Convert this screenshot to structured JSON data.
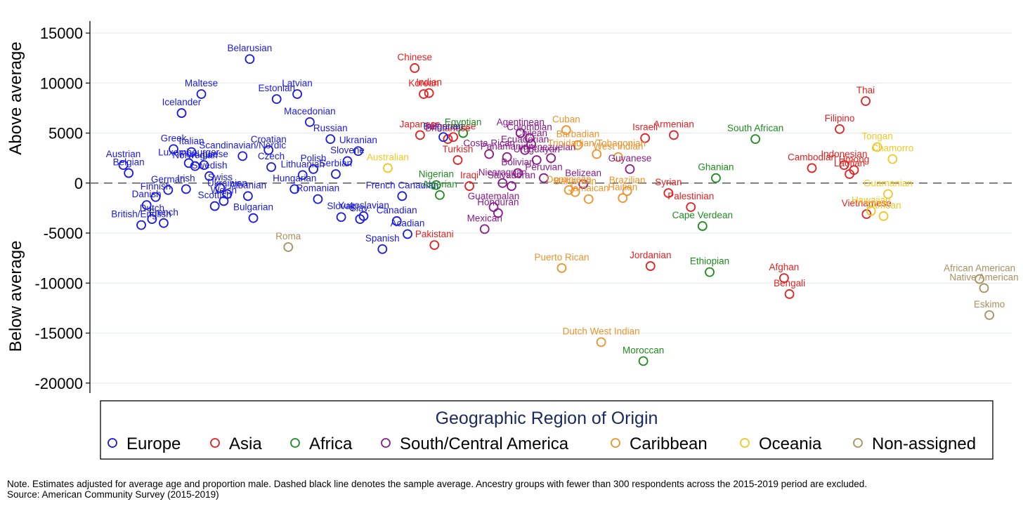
{
  "notes": {
    "line1": "Note. Estimates adjusted for average age and proportion male. Dashed black line denotes the sample average. Ancestry groups with fewer than 300 respondents across the 2015-2019 period are excluded.",
    "line2": "Source: American Community Survey (2015-2019)"
  },
  "chart_data": {
    "type": "scatter",
    "ylabel_top": "Above average",
    "ylabel_bottom": "Below average",
    "y_ticks": [
      15000,
      10000,
      5000,
      0,
      -5000,
      -10000,
      -15000,
      -20000
    ],
    "y_tick_labels": [
      "15000",
      "10000",
      "5000",
      "0",
      "-5000",
      "-10000",
      "-15000",
      "-20000"
    ],
    "ylim": [
      -21000,
      16200
    ],
    "xlim": [
      0,
      100
    ],
    "grid": true,
    "reference_line": 0,
    "legend": {
      "title": "Geographic Region of Origin",
      "position": "bottom",
      "entries": [
        "Europe",
        "Asia",
        "Africa",
        "South/Central America",
        "Caribbean",
        "Oceania",
        "Non-assigned"
      ]
    },
    "colors": {
      "Europe": "#1a1ae6",
      "Asia": "#e62020",
      "Africa": "#1e8c1e",
      "South/Central America": "#8b1a8b",
      "Caribbean": "#f0922a",
      "Oceania": "#f2c824",
      "Non-assigned": "#a89060",
      "grid": "#e6eef2",
      "reference": "#666666"
    },
    "points": [
      {
        "label": "Austrian",
        "region": "Europe",
        "x": 2.0,
        "y": 1800
      },
      {
        "label": "Belgian",
        "region": "Europe",
        "x": 2.6,
        "y": 1000
      },
      {
        "label": "Danish",
        "region": "Europe",
        "x": 4.6,
        "y": -2200
      },
      {
        "label": "British/English",
        "region": "Europe",
        "x": 4.0,
        "y": -4200
      },
      {
        "label": "Dutch",
        "region": "Europe",
        "x": 5.2,
        "y": -3600
      },
      {
        "label": "French",
        "region": "Europe",
        "x": 6.5,
        "y": -4000
      },
      {
        "label": "Finnish",
        "region": "Europe",
        "x": 5.6,
        "y": -1400
      },
      {
        "label": "German",
        "region": "Europe",
        "x": 7.0,
        "y": -700
      },
      {
        "label": "Greek",
        "region": "Europe",
        "x": 7.6,
        "y": 3400
      },
      {
        "label": "Irish",
        "region": "Europe",
        "x": 9.0,
        "y": -600
      },
      {
        "label": "Italian",
        "region": "Europe",
        "x": 9.6,
        "y": 3100
      },
      {
        "label": "Icelander",
        "region": "Europe",
        "x": 8.5,
        "y": 7000
      },
      {
        "label": "Luxembourger",
        "region": "Europe",
        "x": 9.3,
        "y": 2000
      },
      {
        "label": "Norwegian",
        "region": "Europe",
        "x": 10.0,
        "y": 1700
      },
      {
        "label": "Portuguese",
        "region": "Europe",
        "x": 11.0,
        "y": 1800
      },
      {
        "label": "Maltese",
        "region": "Europe",
        "x": 10.7,
        "y": 8900
      },
      {
        "label": "Swedish",
        "region": "Europe",
        "x": 11.6,
        "y": 700
      },
      {
        "label": "Scandinavian/Nordic",
        "region": "Europe",
        "x": 15.3,
        "y": 2700
      },
      {
        "label": "Scottish",
        "region": "Europe",
        "x": 12.2,
        "y": -2300
      },
      {
        "label": "Welsh",
        "region": "Europe",
        "x": 13.2,
        "y": -1800
      },
      {
        "label": "Swiss",
        "region": "Europe",
        "x": 12.8,
        "y": -500
      },
      {
        "label": "Ukrainian",
        "region": "Europe",
        "x": 13.6,
        "y": -1100
      },
      {
        "label": "Albanian",
        "region": "Europe",
        "x": 15.9,
        "y": -1300
      },
      {
        "label": "Bulgarian",
        "region": "Europe",
        "x": 16.5,
        "y": -3500
      },
      {
        "label": "Belarusian",
        "region": "Europe",
        "x": 16.1,
        "y": 12400
      },
      {
        "label": "Croatian",
        "region": "Europe",
        "x": 18.2,
        "y": 3300
      },
      {
        "label": "Czech",
        "region": "Europe",
        "x": 18.5,
        "y": 1600
      },
      {
        "label": "Estonian",
        "region": "Europe",
        "x": 19.1,
        "y": 8400
      },
      {
        "label": "Latvian",
        "region": "Europe",
        "x": 21.4,
        "y": 8900
      },
      {
        "label": "Macedonian",
        "region": "Europe",
        "x": 22.8,
        "y": 6100
      },
      {
        "label": "Hungarian",
        "region": "Europe",
        "x": 21.1,
        "y": -600
      },
      {
        "label": "Lithuanian",
        "region": "Europe",
        "x": 22.0,
        "y": 800
      },
      {
        "label": "Polish",
        "region": "Europe",
        "x": 23.2,
        "y": 1400
      },
      {
        "label": "Romanian",
        "region": "Europe",
        "x": 23.7,
        "y": -1600
      },
      {
        "label": "Russian",
        "region": "Europe",
        "x": 25.1,
        "y": 4400
      },
      {
        "label": "Serbian",
        "region": "Europe",
        "x": 25.7,
        "y": 900
      },
      {
        "label": "Slovene",
        "region": "Europe",
        "x": 27.0,
        "y": 2200
      },
      {
        "label": "Ukranian",
        "region": "Europe",
        "x": 28.2,
        "y": 3200
      },
      {
        "label": "Slovak",
        "region": "Europe",
        "x": 26.3,
        "y": -3400
      },
      {
        "label": "Yugoslavian",
        "region": "Europe",
        "x": 28.8,
        "y": -3300
      },
      {
        "label": "Slav.",
        "region": "Europe",
        "x": 28.4,
        "y": -3600
      },
      {
        "label": "Canadian",
        "region": "Europe",
        "x": 32.5,
        "y": -3800
      },
      {
        "label": "French Canadian",
        "region": "Europe",
        "x": 33.1,
        "y": -1300
      },
      {
        "label": "Acadian",
        "region": "Europe",
        "x": 33.7,
        "y": -5100
      },
      {
        "label": "Spanish",
        "region": "Europe",
        "x": 30.9,
        "y": -6600
      },
      {
        "label": "Roma",
        "region": "Non-assigned",
        "x": 20.4,
        "y": -6400
      },
      {
        "label": "Australian",
        "region": "Oceania",
        "x": 31.5,
        "y": 1500
      },
      {
        "label": "Chinese",
        "region": "Asia",
        "x": 34.5,
        "y": 11500
      },
      {
        "label": "Korean",
        "region": "Asia",
        "x": 35.5,
        "y": 8900
      },
      {
        "label": "Indian",
        "region": "Asia",
        "x": 36.1,
        "y": 9000
      },
      {
        "label": "Japanese",
        "region": "Asia",
        "x": 35.1,
        "y": 4800
      },
      {
        "label": "Bhutanese",
        "region": "Asia",
        "x": 38.8,
        "y": 4600
      },
      {
        "label": "Bhutanese",
        "region": "Asia",
        "x": 38.2,
        "y": 4400
      },
      {
        "label": "Turkish",
        "region": "Asia",
        "x": 39.3,
        "y": 2300
      },
      {
        "label": "Iraqi",
        "region": "Asia",
        "x": 40.6,
        "y": -300
      },
      {
        "label": "Pakistani",
        "region": "Asia",
        "x": 36.7,
        "y": -6200
      },
      {
        "label": "Bulgarian",
        "region": "Europe",
        "x": 37.7,
        "y": 4600
      },
      {
        "label": "Egyptian",
        "region": "Africa",
        "x": 39.9,
        "y": 5000
      },
      {
        "label": "Nigerian",
        "region": "Africa",
        "x": 36.9,
        "y": -200
      },
      {
        "label": "Algerian",
        "region": "Africa",
        "x": 37.3,
        "y": -1200
      },
      {
        "label": "Agentinean",
        "region": "South/Central America",
        "x": 46.3,
        "y": 5000
      },
      {
        "label": "Colombian",
        "region": "South/Central America",
        "x": 47.3,
        "y": 4500
      },
      {
        "label": "Chilean",
        "region": "South/Central America",
        "x": 47.5,
        "y": 3900
      },
      {
        "label": "Costa Rican",
        "region": "South/Central America",
        "x": 42.8,
        "y": 2900
      },
      {
        "label": "Panamanian",
        "region": "South/Central America",
        "x": 44.8,
        "y": 2600
      },
      {
        "label": "Ecuadorian",
        "region": "South/Central America",
        "x": 46.8,
        "y": 3300
      },
      {
        "label": "Venezuelan",
        "region": "South/Central America",
        "x": 49.7,
        "y": 2500
      },
      {
        "label": "Uruguayan",
        "region": "South/Central America",
        "x": 48.1,
        "y": 2300
      },
      {
        "label": "Bolivian",
        "region": "South/Central America",
        "x": 46.0,
        "y": 1000
      },
      {
        "label": "Nicaraguan",
        "region": "South/Central America",
        "x": 44.3,
        "y": 0
      },
      {
        "label": "Salvadoran",
        "region": "South/Central America",
        "x": 45.3,
        "y": -300
      },
      {
        "label": "Peruvian",
        "region": "South/Central America",
        "x": 48.9,
        "y": 500
      },
      {
        "label": "Guatemalan",
        "region": "South/Central America",
        "x": 43.3,
        "y": -2400
      },
      {
        "label": "Honduran",
        "region": "South/Central America",
        "x": 43.8,
        "y": -3000
      },
      {
        "label": "Mexican",
        "region": "South/Central America",
        "x": 42.3,
        "y": -4600
      },
      {
        "label": "Belizean",
        "region": "South/Central America",
        "x": 53.3,
        "y": -100
      },
      {
        "label": "Guyanese",
        "region": "South/Central America",
        "x": 58.5,
        "y": 1400
      },
      {
        "label": "Cuban",
        "region": "Caribbean",
        "x": 51.4,
        "y": 5300
      },
      {
        "label": "Barbadian",
        "region": "Caribbean",
        "x": 52.7,
        "y": 3800
      },
      {
        "label": "Trinidadian/Tobagonian",
        "region": "Caribbean",
        "x": 54.8,
        "y": 2900
      },
      {
        "label": "West Indian",
        "region": "Caribbean",
        "x": 57.2,
        "y": 2600
      },
      {
        "label": "Dominican",
        "region": "Caribbean",
        "x": 51.7,
        "y": -700
      },
      {
        "label": "Bahamian",
        "region": "Caribbean",
        "x": 52.4,
        "y": -900
      },
      {
        "label": "Jamaican",
        "region": "Caribbean",
        "x": 53.9,
        "y": -1600
      },
      {
        "label": "Haitian",
        "region": "Caribbean",
        "x": 57.7,
        "y": -1500
      },
      {
        "label": "Brazilian",
        "region": "Caribbean",
        "x": 58.2,
        "y": -800
      },
      {
        "label": "Puerto Rican",
        "region": "Caribbean",
        "x": 50.9,
        "y": -8500
      },
      {
        "label": "Dutch West Indian",
        "region": "Caribbean",
        "x": 55.3,
        "y": -15900
      },
      {
        "label": "Israeli",
        "region": "Asia",
        "x": 60.2,
        "y": 4500
      },
      {
        "label": "Armenian",
        "region": "Asia",
        "x": 63.4,
        "y": 4800
      },
      {
        "label": "Syrian",
        "region": "Asia",
        "x": 62.8,
        "y": -1000
      },
      {
        "label": "Palestinian",
        "region": "Asia",
        "x": 65.3,
        "y": -2400
      },
      {
        "label": "Jordanian",
        "region": "Asia",
        "x": 60.8,
        "y": -8300
      },
      {
        "label": "South African",
        "region": "Africa",
        "x": 72.5,
        "y": 4400
      },
      {
        "label": "Ghanian",
        "region": "Africa",
        "x": 68.1,
        "y": 500
      },
      {
        "label": "Cape Verdean",
        "region": "Africa",
        "x": 66.6,
        "y": -4300
      },
      {
        "label": "Ethiopian",
        "region": "Africa",
        "x": 67.4,
        "y": -8900
      },
      {
        "label": "Moroccan",
        "region": "Africa",
        "x": 60.0,
        "y": -17800
      },
      {
        "label": "Afghan",
        "region": "Asia",
        "x": 75.7,
        "y": -9500
      },
      {
        "label": "Bengali",
        "region": "Asia",
        "x": 76.3,
        "y": -11100
      },
      {
        "label": "Thai",
        "region": "Asia",
        "x": 84.8,
        "y": 8200
      },
      {
        "label": "Filipino",
        "region": "Asia",
        "x": 81.9,
        "y": 5400
      },
      {
        "label": "Cambodian",
        "region": "Asia",
        "x": 78.8,
        "y": 1500
      },
      {
        "label": "Indonesian",
        "region": "Asia",
        "x": 82.4,
        "y": 1800
      },
      {
        "label": "Hmong",
        "region": "Asia",
        "x": 83.5,
        "y": 1300
      },
      {
        "label": "Laotian",
        "region": "Asia",
        "x": 83.0,
        "y": 900
      },
      {
        "label": "Vietnamese",
        "region": "Asia",
        "x": 84.9,
        "y": -3100
      },
      {
        "label": "Tongan",
        "region": "Oceania",
        "x": 86.1,
        "y": 3600
      },
      {
        "label": "Chamorro",
        "region": "Oceania",
        "x": 87.8,
        "y": 2400
      },
      {
        "label": "Guamanian",
        "region": "Oceania",
        "x": 87.3,
        "y": -1100
      },
      {
        "label": "Hawaiian",
        "region": "Oceania",
        "x": 85.4,
        "y": -2800
      },
      {
        "label": "Samoan",
        "region": "Oceania",
        "x": 86.8,
        "y": -3300
      },
      {
        "label": "African American",
        "region": "Non-assigned",
        "x": 97.5,
        "y": -9600
      },
      {
        "label": "Native American",
        "region": "Non-assigned",
        "x": 98.0,
        "y": -10500
      },
      {
        "label": "Eskimo",
        "region": "Non-assigned",
        "x": 98.6,
        "y": -13200
      }
    ]
  }
}
